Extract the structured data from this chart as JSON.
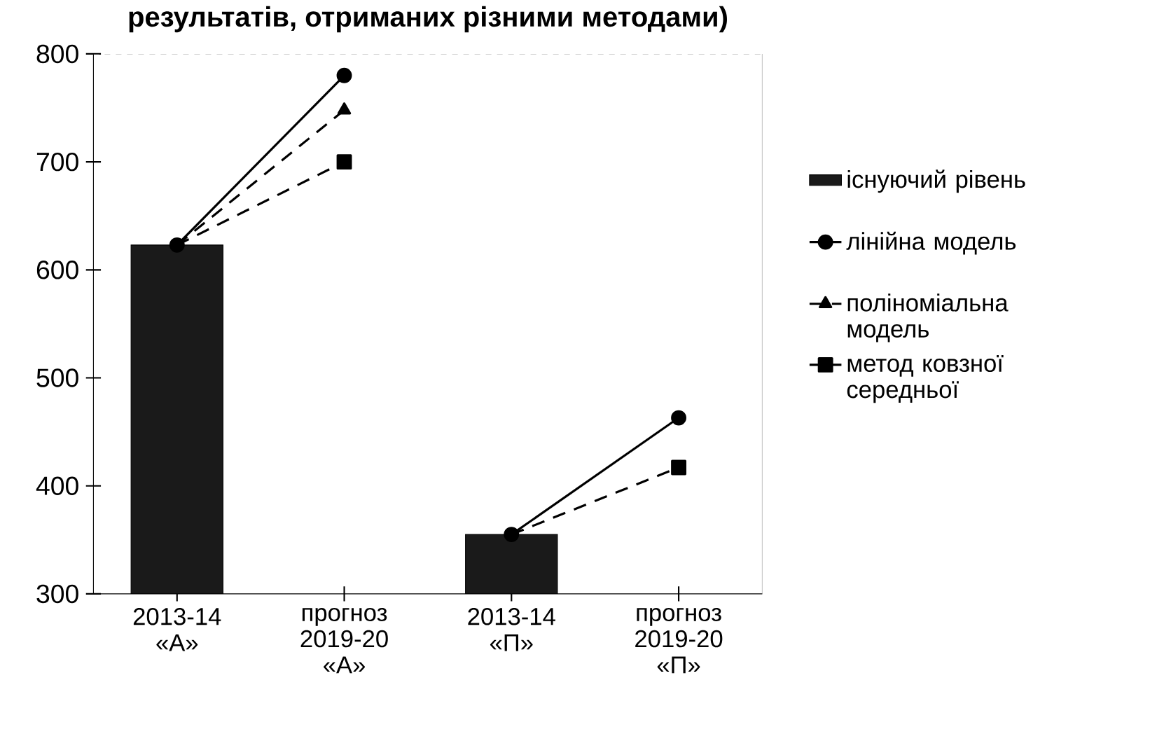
{
  "chart_data": {
    "type": "bar",
    "title": "результатів, отриманих різними методами)",
    "categories": [
      "2013-14 «А»",
      "прогноз 2019-20 «А»",
      "2013-14 «П»",
      "прогноз 2019-20 «П»"
    ],
    "series": [
      {
        "name": "існуючий рівень",
        "color": "#1a1a1a",
        "values": [
          623,
          null,
          355,
          null
        ]
      },
      {
        "type": "line",
        "name": "лінійна модель",
        "color": "#000000",
        "marker": "circle",
        "line_style": "solid",
        "values": [
          623,
          780,
          null,
          null
        ]
      },
      {
        "type": "line",
        "color": "#000000",
        "marker": "circle",
        "line_style": "solid",
        "values": [
          null,
          null,
          355,
          463
        ]
      },
      {
        "type": "line",
        "name": "поліноміальна модель",
        "color": "#000000",
        "marker": "triangle",
        "line_style": "dashed",
        "values": [
          623,
          748,
          null,
          null
        ]
      },
      {
        "type": "line",
        "name": "метод ковзної середньої",
        "color": "#000000",
        "marker": "square",
        "line_style": "dashed",
        "values": [
          623,
          700,
          null,
          null
        ]
      },
      {
        "type": "line",
        "color": "#000000",
        "marker": "square",
        "line_style": "dashed",
        "values": [
          null,
          null,
          355,
          417
        ]
      }
    ],
    "ylim": [
      300,
      800
    ],
    "yticks": [
      300,
      400,
      500,
      600,
      700,
      800
    ],
    "legend": "right"
  }
}
